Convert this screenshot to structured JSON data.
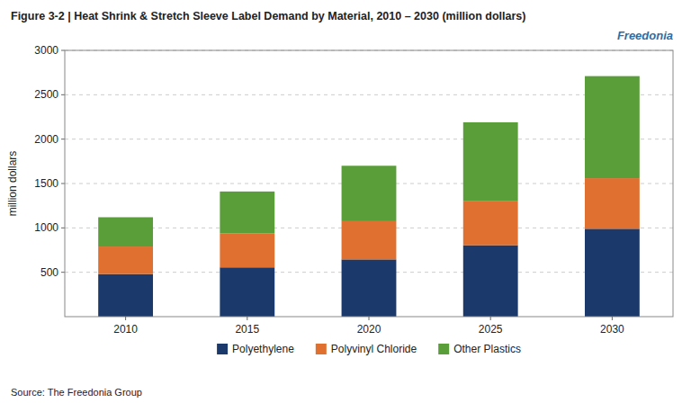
{
  "chart_data": {
    "type": "bar",
    "stacked": true,
    "title": "Figure 3-2 | Heat Shrink & Stretch Sleeve Label Demand by Material, 2010 – 2030 (million dollars)",
    "ylabel": "million dollars",
    "categories": [
      "2010",
      "2015",
      "2020",
      "2025",
      "2030"
    ],
    "series": [
      {
        "name": "Polyethylene",
        "color": "#1b3a6b",
        "values": [
          480,
          555,
          645,
          805,
          990
        ]
      },
      {
        "name": "Polyvinyl Chloride",
        "color": "#e07030",
        "values": [
          310,
          385,
          430,
          495,
          570
        ]
      },
      {
        "name": "Other Plastics",
        "color": "#5a9e3a",
        "values": [
          330,
          470,
          625,
          890,
          1150
        ]
      }
    ],
    "ylim": [
      0,
      3000
    ],
    "yticks": [
      500,
      1000,
      1500,
      2000,
      2500,
      3000
    ],
    "grid": true,
    "legend": "bottom",
    "annotations": [
      "Freedonia",
      "Source: The Freedonia Group"
    ]
  }
}
